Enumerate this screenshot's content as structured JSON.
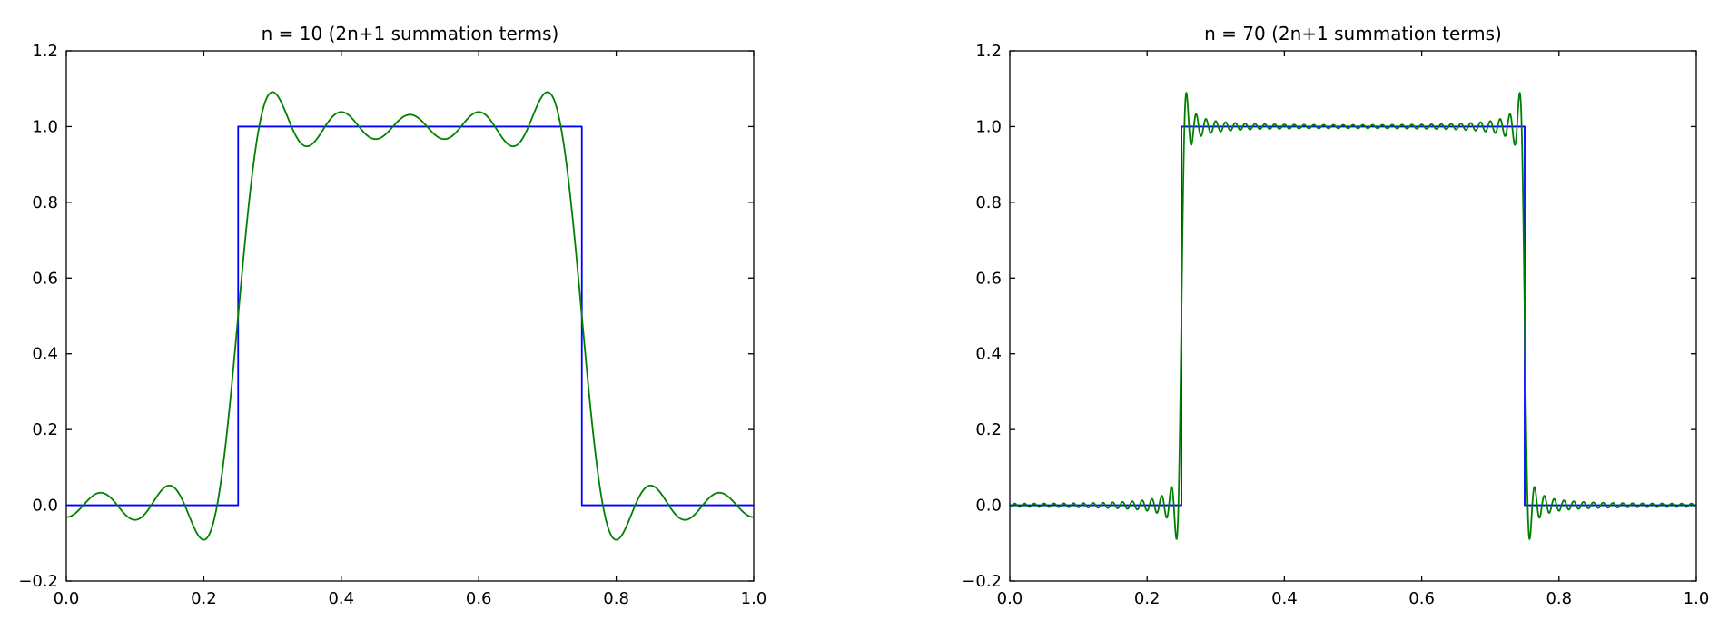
{
  "figure": {
    "background": "#ffffff",
    "axis_color": "#000000",
    "tick_label_color": "#000000"
  },
  "chart_data": [
    {
      "type": "line",
      "title": "n = 10 (2n+1 summation terms)",
      "xlabel": "",
      "ylabel": "",
      "xlim": [
        0.0,
        1.0
      ],
      "ylim": [
        -0.2,
        1.2
      ],
      "xtick_values": [
        0.0,
        0.2,
        0.4,
        0.6,
        0.8,
        1.0
      ],
      "xtick_labels": [
        "0.0",
        "0.2",
        "0.4",
        "0.6",
        "0.8",
        "1.0"
      ],
      "ytick_values": [
        -0.2,
        0.0,
        0.2,
        0.4,
        0.6,
        0.8,
        1.0,
        1.2
      ],
      "ytick_labels": [
        "−0.2",
        "0.0",
        "0.2",
        "0.4",
        "0.6",
        "0.8",
        "1.0",
        "1.2"
      ],
      "grid": false,
      "legend": "none",
      "series": [
        {
          "name": "ideal square wave",
          "kind": "step",
          "color": "#0000ff",
          "x": [
            0.0,
            0.25,
            0.25,
            0.75,
            0.75,
            1.0
          ],
          "y": [
            0.0,
            0.0,
            1.0,
            1.0,
            0.0,
            0.0
          ]
        },
        {
          "name": "Fourier partial sum",
          "kind": "fourier_square_partial_sum",
          "color": "#008000",
          "n": 10,
          "mean_level": 0.5,
          "period": 1.0,
          "step_edges": [
            0.25,
            0.75
          ],
          "low_level": 0.0,
          "high_level": 1.0,
          "gibbs_overshoot_peak": 1.09,
          "gibbs_undershoot_min": -0.09,
          "value_at_x0": -0.03
        }
      ]
    },
    {
      "type": "line",
      "title": "n = 70 (2n+1 summation terms)",
      "xlabel": "",
      "ylabel": "",
      "xlim": [
        0.0,
        1.0
      ],
      "ylim": [
        -0.2,
        1.2
      ],
      "xtick_values": [
        0.0,
        0.2,
        0.4,
        0.6,
        0.8,
        1.0
      ],
      "xtick_labels": [
        "0.0",
        "0.2",
        "0.4",
        "0.6",
        "0.8",
        "1.0"
      ],
      "ytick_values": [
        -0.2,
        0.0,
        0.2,
        0.4,
        0.6,
        0.8,
        1.0,
        1.2
      ],
      "ytick_labels": [
        "−0.2",
        "0.0",
        "0.2",
        "0.4",
        "0.6",
        "0.8",
        "1.0",
        "1.2"
      ],
      "grid": false,
      "legend": "none",
      "series": [
        {
          "name": "ideal square wave",
          "kind": "step",
          "color": "#0000ff",
          "x": [
            0.0,
            0.25,
            0.25,
            0.75,
            0.75,
            1.0
          ],
          "y": [
            0.0,
            0.0,
            1.0,
            1.0,
            0.0,
            0.0
          ]
        },
        {
          "name": "Fourier partial sum",
          "kind": "fourier_square_partial_sum",
          "color": "#008000",
          "n": 70,
          "mean_level": 0.5,
          "period": 1.0,
          "step_edges": [
            0.25,
            0.75
          ],
          "low_level": 0.0,
          "high_level": 1.0,
          "gibbs_overshoot_peak": 1.09,
          "gibbs_undershoot_min": -0.09,
          "value_at_x0": 0.0
        }
      ]
    }
  ]
}
